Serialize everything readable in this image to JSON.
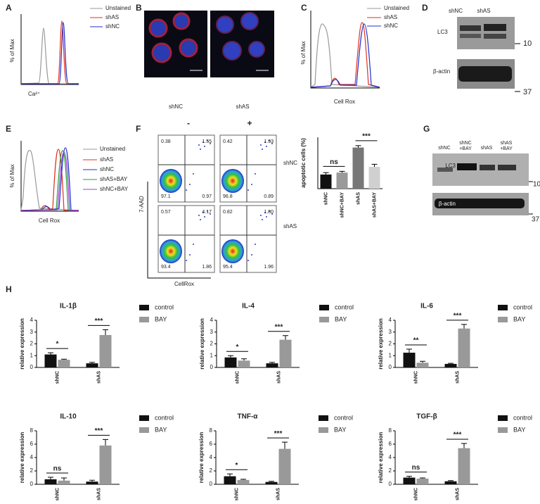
{
  "panels": {
    "A": {
      "label": "A",
      "y_label": "% of Max",
      "x_label": "Ca²⁺",
      "legend": [
        "Unstained",
        "shAS",
        "shNC"
      ]
    },
    "B": {
      "label": "B",
      "captions": [
        "shNC",
        "shAS"
      ]
    },
    "C": {
      "label": "C",
      "y_label": "% of Max",
      "x_label": "Cell Rox",
      "legend": [
        "Unstained",
        "shAS",
        "shNC"
      ]
    },
    "D": {
      "label": "D",
      "lanes": [
        "shNC",
        "shAS"
      ],
      "bands": [
        "LC3",
        "β-actin"
      ],
      "markers": [
        "10",
        "37"
      ]
    },
    "E": {
      "label": "E",
      "y_label": "% of Max",
      "x_label": "Cell Rox",
      "legend": [
        "Unstained",
        "shAS",
        "shNC",
        "shAS+BAY",
        "shNC+BAY"
      ]
    },
    "F": {
      "label": "F",
      "columns": [
        "-",
        "+"
      ],
      "rows": [
        "shNC",
        "shAS"
      ],
      "y_label": "7-AAD",
      "x_label": "CellRox",
      "quadrants": [
        [
          "0.38",
          "1.55",
          "97.1",
          "0.97"
        ],
        [
          "0.42",
          "1.93",
          "96.8",
          "0.89"
        ],
        [
          "0.57",
          "4.17",
          "93.4",
          "1.86"
        ],
        [
          "0.82",
          "1.80",
          "95.4",
          "1.96"
        ]
      ]
    },
    "G": {
      "label": "G",
      "lanes": [
        [
          "shNC"
        ],
        [
          "shNC",
          "+BAY"
        ],
        [
          "shAS"
        ],
        [
          "shAS",
          "+BAY"
        ]
      ],
      "bands": [
        "LC3",
        "β-actin"
      ],
      "markers": [
        "10",
        "37"
      ]
    },
    "H": {
      "label": "H"
    }
  },
  "chart_data": [
    {
      "type": "bar",
      "y_label": "apoptotic cells (%)",
      "categories": [
        "shNC",
        "shNC+BAY",
        "shAS",
        "shAS+BAY"
      ],
      "values": [
        2.2,
        2.5,
        6.4,
        3.4
      ],
      "errors": [
        0.3,
        0.2,
        0.3,
        0.4
      ],
      "colors": [
        "#111111",
        "#9a9a9a",
        "#777777",
        "#d0d0d0"
      ],
      "ylim": [
        0,
        8
      ],
      "significance": [
        "ns",
        "***"
      ]
    },
    {
      "type": "grouped_bar",
      "title": "IL-1β",
      "y_label": "relative expression",
      "categories": [
        "shNC",
        "shAS"
      ],
      "series": [
        {
          "name": "control",
          "color": "#111111",
          "values": [
            1.1,
            0.35
          ],
          "errors": [
            0.15,
            0.08
          ]
        },
        {
          "name": "BAY",
          "color": "#999999",
          "values": [
            0.65,
            2.75
          ],
          "errors": [
            0.05,
            0.45
          ]
        }
      ],
      "ylim": [
        0,
        4
      ],
      "yticks": [
        0,
        1,
        2,
        3,
        4
      ],
      "significance": [
        "*",
        "***"
      ]
    },
    {
      "type": "grouped_bar",
      "title": "IL-4",
      "y_label": "relative expression",
      "categories": [
        "shNC",
        "shAS"
      ],
      "series": [
        {
          "name": "control",
          "color": "#111111",
          "values": [
            0.85,
            0.35
          ],
          "errors": [
            0.15,
            0.08
          ]
        },
        {
          "name": "BAY",
          "color": "#999999",
          "values": [
            0.58,
            2.35
          ],
          "errors": [
            0.15,
            0.35
          ]
        }
      ],
      "ylim": [
        0,
        4
      ],
      "yticks": [
        0,
        1,
        2,
        3,
        4
      ],
      "significance": [
        "*",
        "***"
      ]
    },
    {
      "type": "grouped_bar",
      "title": "IL-6",
      "y_label": "relative expression",
      "categories": [
        "shNC",
        "shAS"
      ],
      "series": [
        {
          "name": "control",
          "color": "#111111",
          "values": [
            1.25,
            0.3
          ],
          "errors": [
            0.3,
            0.05
          ]
        },
        {
          "name": "BAY",
          "color": "#999999",
          "values": [
            0.4,
            3.3
          ],
          "errors": [
            0.12,
            0.35
          ]
        }
      ],
      "ylim": [
        0,
        4
      ],
      "yticks": [
        0,
        1,
        2,
        3,
        4
      ],
      "significance": [
        "**",
        "***"
      ]
    },
    {
      "type": "grouped_bar",
      "title": "IL-10",
      "y_label": "relative expression",
      "categories": [
        "shNC",
        "shAS"
      ],
      "series": [
        {
          "name": "control",
          "color": "#111111",
          "values": [
            0.75,
            0.4
          ],
          "errors": [
            0.3,
            0.2
          ]
        },
        {
          "name": "BAY",
          "color": "#999999",
          "values": [
            0.55,
            5.8
          ],
          "errors": [
            0.4,
            0.9
          ]
        }
      ],
      "ylim": [
        0,
        8
      ],
      "yticks": [
        0,
        2,
        4,
        6,
        8
      ],
      "significance": [
        "ns",
        "***"
      ]
    },
    {
      "type": "grouped_bar",
      "title": "TNF-α",
      "y_label": "relative expression",
      "categories": [
        "shNC",
        "shAS"
      ],
      "series": [
        {
          "name": "control",
          "color": "#111111",
          "values": [
            1.2,
            0.35
          ],
          "errors": [
            0.35,
            0.1
          ]
        },
        {
          "name": "BAY",
          "color": "#999999",
          "values": [
            0.65,
            5.3
          ],
          "errors": [
            0.1,
            1.0
          ]
        }
      ],
      "ylim": [
        0,
        8
      ],
      "yticks": [
        0,
        2,
        4,
        6,
        8
      ],
      "significance": [
        "*",
        "***"
      ]
    },
    {
      "type": "grouped_bar",
      "title": "TGF-β",
      "y_label": "relative expression",
      "categories": [
        "shNC",
        "shAS"
      ],
      "series": [
        {
          "name": "control",
          "color": "#111111",
          "values": [
            1.0,
            0.45
          ],
          "errors": [
            0.2,
            0.1
          ]
        },
        {
          "name": "BAY",
          "color": "#999999",
          "values": [
            0.85,
            5.4
          ],
          "errors": [
            0.1,
            0.7
          ]
        }
      ],
      "ylim": [
        0,
        8
      ],
      "yticks": [
        0,
        2,
        4,
        6,
        8
      ],
      "significance": [
        "ns",
        "***"
      ]
    }
  ]
}
